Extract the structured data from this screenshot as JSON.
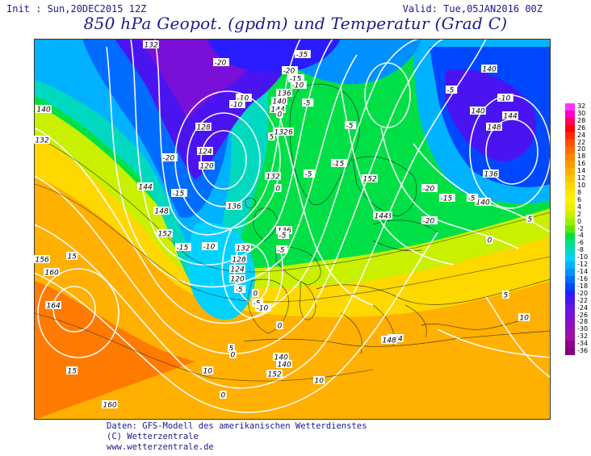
{
  "header": {
    "init": "Init : Sun,20DEC2015 12Z",
    "valid": "Valid: Tue,05JAN2016 00Z",
    "title": "850 hPa Geopot. (gpdm) und Temperatur (Grad C)"
  },
  "legend": {
    "labels": [
      "32",
      "30",
      "28",
      "26",
      "24",
      "22",
      "20",
      "18",
      "16",
      "14",
      "12",
      "10",
      "8",
      "6",
      "4",
      "2",
      "0",
      "-2",
      "-4",
      "-6",
      "-8",
      "-10",
      "-12",
      "-14",
      "-16",
      "-18",
      "-20",
      "-22",
      "-24",
      "-26",
      "-28",
      "-30",
      "-32",
      "-34",
      "-36"
    ],
    "colors": [
      "#ff33ff",
      "#ff00cc",
      "#ff0066",
      "#ff0000",
      "#ff2a00",
      "#ff5000",
      "#ff6a00",
      "#ff8400",
      "#ff9a00",
      "#ffb000",
      "#ffc600",
      "#ffd800",
      "#ffe800",
      "#fff200",
      "#e8f200",
      "#c8f000",
      "#99f000",
      "#5ce800",
      "#00e046",
      "#00e08c",
      "#00d8c0",
      "#00d2ff",
      "#00b2ff",
      "#0090ff",
      "#006cff",
      "#0048ff",
      "#2a1cff",
      "#4a14f0",
      "#6614e6",
      "#7a10d8",
      "#8a10c8",
      "#9810b4",
      "#a010a0",
      "#900090",
      "#80007c"
    ]
  },
  "map": {
    "contours": [
      "-35",
      "-20",
      "132",
      "-20",
      "-15",
      "-10",
      "136",
      "140",
      "144",
      "-10",
      "-5",
      "128",
      "124",
      "120",
      "-20",
      "-15",
      "-10",
      "140",
      "132",
      "144",
      "148",
      "152",
      "136",
      "-10",
      "-5",
      "0",
      "132",
      "128",
      "124",
      "120",
      "132",
      "136",
      "-5",
      "0",
      "-5",
      "-15",
      "-5",
      "152",
      "148",
      "144",
      "-20",
      "136",
      "140",
      "-15",
      "-20",
      "140",
      "-10",
      "-5",
      "0",
      "5",
      "136",
      "132",
      "-5",
      "144",
      "148",
      "140",
      "144",
      "148",
      "-5",
      "-10",
      "-5",
      "5",
      "0",
      "5",
      "10",
      "152",
      "10",
      "160",
      "164",
      "156",
      "160",
      "15",
      "15",
      "0",
      "5",
      "10",
      "0",
      "140",
      "140",
      "0",
      "-15"
    ],
    "label_colors": {
      "text": "#000000",
      "box": "#ffffff",
      "isotherm": "#ffffff"
    }
  },
  "footer": {
    "line1": "Daten: GFS-Modell des amerikanischen Wetterdienstes",
    "line2": "(C) Wetterzentrale",
    "line3": "www.wetterzentrale.de"
  }
}
